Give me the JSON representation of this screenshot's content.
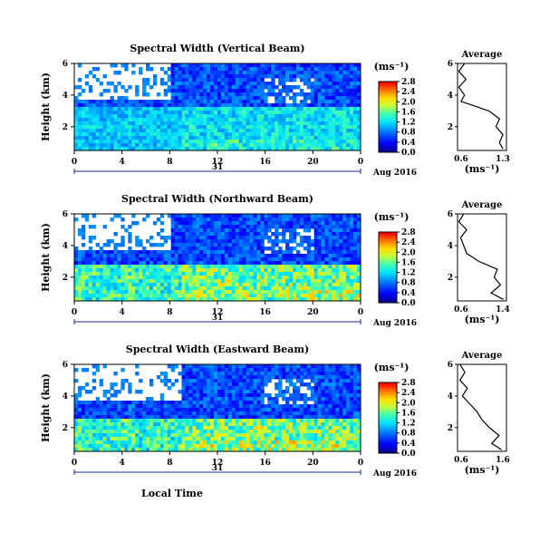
{
  "figure": {
    "panels": [
      {
        "id": "vertical",
        "title": "Spectral Width (Vertical Beam)",
        "ylabel": "Height (km)",
        "colorbar_unit": "(ms⁻¹)",
        "colorbar_ticks": [
          "0.0",
          "0.4",
          "0.8",
          "1.2",
          "1.6",
          "2.0",
          "2.4",
          "2.8"
        ],
        "time_ticks": [
          "0",
          "4",
          "8",
          "12",
          "16",
          "20",
          "0"
        ],
        "height_ticks": [
          "2",
          "4",
          "6"
        ],
        "date_mid": "31",
        "date_end": "Aug 2016"
      },
      {
        "id": "northward",
        "title": "Spectral Width (Northward Beam)",
        "ylabel": "Height (km)",
        "colorbar_unit": "(ms⁻¹)",
        "colorbar_ticks": [
          "0.0",
          "0.4",
          "0.8",
          "1.2",
          "1.6",
          "2.0",
          "2.4",
          "2.8"
        ],
        "time_ticks": [
          "0",
          "4",
          "8",
          "12",
          "16",
          "20",
          "0"
        ],
        "height_ticks": [
          "2",
          "4",
          "6"
        ],
        "date_mid": "31",
        "date_end": "Aug 2016"
      },
      {
        "id": "eastward",
        "title": "Spectral Width (Eastward Beam)",
        "ylabel": "Height (km)",
        "colorbar_unit": "(ms⁻¹)",
        "colorbar_ticks": [
          "0.0",
          "0.4",
          "0.8",
          "1.2",
          "1.6",
          "2.0",
          "2.4",
          "2.8"
        ],
        "time_ticks": [
          "0",
          "4",
          "8",
          "12",
          "16",
          "20",
          "0"
        ],
        "height_ticks": [
          "2",
          "4",
          "6"
        ],
        "date_mid": "31",
        "date_end": "Aug 2016"
      }
    ],
    "xlabel": "Local Time"
  },
  "chart_data": [
    {
      "type": "heatmap",
      "title": "Spectral Width (Vertical Beam)",
      "xlabel": "",
      "ylabel": "Height (km)",
      "xlim": [
        0,
        24
      ],
      "ylim": [
        0.5,
        6
      ],
      "clim": [
        0.0,
        2.8
      ],
      "colorscale": [
        "#00008b",
        "#0000ff",
        "#0080ff",
        "#00e0ff",
        "#40ffb0",
        "#c0ff40",
        "#ffe000",
        "#ff8000",
        "#ff0000"
      ],
      "description_bands": [
        {
          "height_range": [
            0.5,
            3.3
          ],
          "time_range": [
            0,
            24
          ],
          "value_range": [
            0.6,
            2.0
          ]
        },
        {
          "height_range": [
            3.3,
            6.0
          ],
          "time_range": [
            0,
            24
          ],
          "value_range": [
            0.3,
            1.0
          ]
        }
      ]
    },
    {
      "type": "line",
      "title": "Average",
      "xlabel": "(ms⁻¹)",
      "ylabel": "",
      "xticks": [
        "0.6",
        "1.3"
      ],
      "yticks": [
        "2",
        "4",
        "6"
      ],
      "xlim": [
        0.6,
        1.3
      ],
      "ylim": [
        0.5,
        6
      ],
      "series": [
        {
          "height_km": [
            0.6,
            1.0,
            1.5,
            2.0,
            2.5,
            3.0,
            3.3,
            3.6,
            4.0,
            4.5,
            5.0,
            5.5,
            6.0
          ],
          "width": [
            1.25,
            1.2,
            1.25,
            1.15,
            1.2,
            1.05,
            0.85,
            0.65,
            0.7,
            0.62,
            0.72,
            0.62,
            0.7
          ]
        }
      ]
    },
    {
      "type": "heatmap",
      "title": "Spectral Width (Northward Beam)",
      "xlabel": "",
      "ylabel": "Height (km)",
      "xlim": [
        0,
        24
      ],
      "ylim": [
        0.5,
        6
      ],
      "clim": [
        0.0,
        2.8
      ],
      "description_bands": [
        {
          "height_range": [
            0.5,
            2.8
          ],
          "time_range": [
            0,
            24
          ],
          "value_range": [
            0.6,
            2.6
          ]
        },
        {
          "height_range": [
            2.8,
            6.0
          ],
          "time_range": [
            0,
            24
          ],
          "value_range": [
            0.3,
            1.0
          ]
        }
      ]
    },
    {
      "type": "line",
      "title": "Average",
      "xlabel": "(ms⁻¹)",
      "ylabel": "",
      "xticks": [
        "0.6",
        "1.4"
      ],
      "yticks": [
        "2",
        "4",
        "6"
      ],
      "xlim": [
        0.6,
        1.4
      ],
      "ylim": [
        0.5,
        6
      ],
      "series": [
        {
          "height_km": [
            0.6,
            1.0,
            1.5,
            2.0,
            2.5,
            3.0,
            3.5,
            4.0,
            4.5,
            5.0,
            5.5,
            6.0
          ],
          "width": [
            1.35,
            1.15,
            1.3,
            1.2,
            1.25,
            0.95,
            0.75,
            0.7,
            0.65,
            0.75,
            0.62,
            0.7
          ]
        }
      ]
    },
    {
      "type": "heatmap",
      "title": "Spectral Width (Eastward Beam)",
      "xlabel": "Local Time",
      "ylabel": "Height (km)",
      "xlim": [
        0,
        24
      ],
      "ylim": [
        0.5,
        6
      ],
      "clim": [
        0.0,
        2.8
      ],
      "description_bands": [
        {
          "height_range": [
            0.5,
            2.6
          ],
          "time_range": [
            0,
            24
          ],
          "value_range": [
            0.6,
            2.6
          ]
        },
        {
          "height_range": [
            2.6,
            6.0
          ],
          "time_range": [
            0,
            24
          ],
          "value_range": [
            0.3,
            1.0
          ]
        }
      ]
    },
    {
      "type": "line",
      "title": "Average",
      "xlabel": "(ms⁻¹)",
      "ylabel": "",
      "xticks": [
        "0.6",
        "1.6"
      ],
      "yticks": [
        "2",
        "4",
        "6"
      ],
      "xlim": [
        0.6,
        1.6
      ],
      "ylim": [
        0.5,
        6
      ],
      "series": [
        {
          "height_km": [
            0.6,
            1.0,
            1.5,
            2.0,
            2.5,
            3.0,
            3.5,
            4.0,
            4.5,
            5.0,
            5.5,
            6.0
          ],
          "width": [
            1.5,
            1.3,
            1.45,
            1.25,
            1.1,
            1.0,
            0.85,
            0.7,
            0.8,
            0.65,
            0.75,
            0.65
          ]
        }
      ]
    }
  ]
}
